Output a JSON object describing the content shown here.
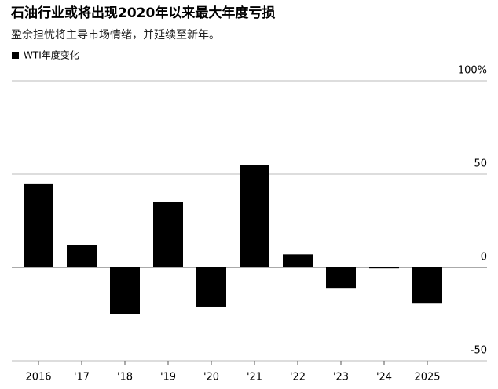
{
  "chart_data": {
    "type": "bar",
    "title": "石油行业或将出现2020年以来最大年度亏损",
    "subtitle": "盈余担忧将主导市场情绪，并延续至新年。",
    "categories": [
      "2016",
      "'17",
      "'18",
      "'19",
      "'20",
      "'21",
      "'22",
      "'23",
      "'24",
      "2025"
    ],
    "series": [
      {
        "name": "WTI年度变化",
        "color": "#000000",
        "values": [
          45,
          12,
          -25,
          35,
          -21,
          55,
          7,
          -11,
          -0.5,
          -19
        ]
      }
    ],
    "ylim": [
      -50,
      100
    ],
    "yticks": [
      {
        "value": 100,
        "label": "100%"
      },
      50,
      0,
      -50
    ],
    "grid": true
  }
}
